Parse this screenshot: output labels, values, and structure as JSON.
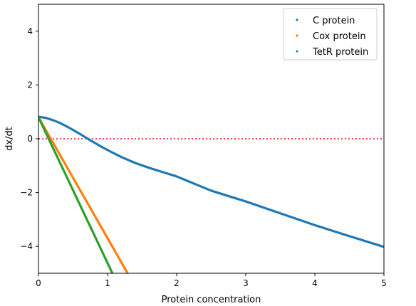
{
  "chart_data": {
    "type": "line",
    "xlabel": "Protein concentration",
    "ylabel": "dx/dt",
    "xlim": [
      0,
      5
    ],
    "ylim": [
      -5,
      5
    ],
    "x_ticks": [
      "0",
      "1",
      "2",
      "3",
      "4",
      "5"
    ],
    "y_ticks": [
      "4",
      "2",
      "0",
      "−2",
      "−4"
    ],
    "legend_position": "top-right",
    "reference_line": {
      "y": 0,
      "color": "#ff0000",
      "style": "dotted"
    },
    "series": [
      {
        "name": "C protein",
        "color": "#1f77b4",
        "x": [
          0,
          0.1,
          0.2,
          0.3,
          0.4,
          0.5,
          0.6,
          0.7,
          0.8,
          0.9,
          1.0,
          1.2,
          1.4,
          1.6,
          1.8,
          2.0,
          2.5,
          3.0,
          3.5,
          4.0,
          4.5,
          5.0
        ],
        "y": [
          0.82,
          0.78,
          0.7,
          0.6,
          0.47,
          0.33,
          0.18,
          0.02,
          -0.13,
          -0.28,
          -0.42,
          -0.68,
          -0.9,
          -1.08,
          -1.24,
          -1.4,
          -1.93,
          -2.33,
          -2.77,
          -3.21,
          -3.62,
          -4.02
        ]
      },
      {
        "name": "Cox protein",
        "color": "#ff7f0e",
        "x": [
          0,
          1.29
        ],
        "y": [
          0.8,
          -5.0
        ]
      },
      {
        "name": "TetR protein",
        "color": "#2ca02c",
        "x": [
          0,
          1.07
        ],
        "y": [
          0.8,
          -5.0
        ]
      }
    ]
  }
}
